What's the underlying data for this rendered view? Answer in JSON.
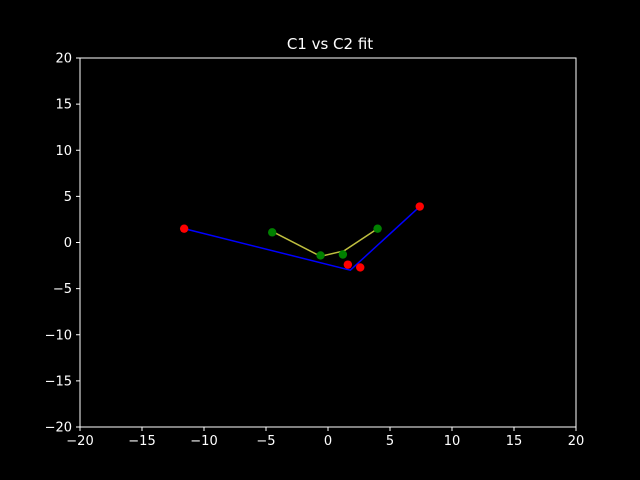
{
  "chart_data": {
    "type": "line",
    "title": "C1 vs C2 fit",
    "xlabel": "",
    "ylabel": "",
    "xlim": [
      -20,
      20
    ],
    "ylim": [
      -20,
      20
    ],
    "xticks": [
      -20,
      -15,
      -10,
      -5,
      0,
      5,
      10,
      15,
      20
    ],
    "yticks": [
      -20,
      -15,
      -10,
      -5,
      0,
      5,
      10,
      15,
      20
    ],
    "grid": false,
    "legend": "none",
    "background": "#000000",
    "axes_color": "#ffffff",
    "series": [
      {
        "kind": "line",
        "color": "#0000ff",
        "x": [
          -11.6,
          1.8,
          7.4
        ],
        "y": [
          1.5,
          -3.0,
          3.9
        ]
      },
      {
        "kind": "line",
        "color": "#bfbf3f",
        "x": [
          -4.5,
          -0.6,
          1.3,
          4.0
        ],
        "y": [
          1.2,
          -1.5,
          -0.9,
          1.5
        ]
      },
      {
        "kind": "scatter",
        "color": "#ff0000",
        "x": [
          -11.6,
          1.6,
          2.6,
          7.4
        ],
        "y": [
          1.5,
          -2.4,
          -2.7,
          3.9
        ]
      },
      {
        "kind": "scatter",
        "color": "#008000",
        "x": [
          -4.5,
          -0.6,
          1.2,
          4.0
        ],
        "y": [
          1.1,
          -1.4,
          -1.3,
          1.5
        ]
      }
    ]
  }
}
